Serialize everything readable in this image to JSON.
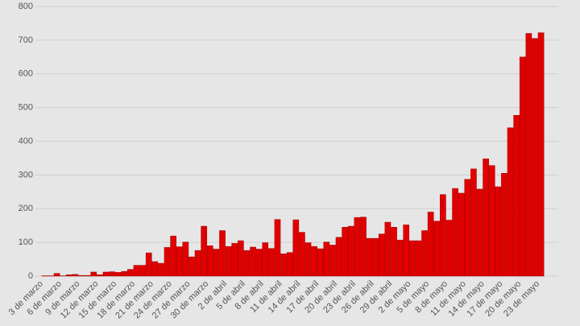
{
  "chart_data": {
    "type": "bar",
    "categories": [
      "3 de marzo",
      null,
      null,
      "6 de marzo",
      null,
      null,
      "9 de marzo",
      null,
      null,
      "12 de marzo",
      null,
      null,
      "15 de marzo",
      null,
      null,
      "18 de marzo",
      null,
      null,
      "21 de marzo",
      null,
      null,
      "24 de marzo",
      null,
      null,
      "27 de marzo",
      null,
      null,
      "30 de marzo",
      null,
      null,
      "2 de abril",
      null,
      null,
      "5 de abril",
      null,
      null,
      "8 de abril",
      null,
      null,
      "11 de abril",
      null,
      null,
      "14 de abril",
      null,
      null,
      "17 de abril",
      null,
      null,
      "20 de abril",
      null,
      null,
      "23 de abril",
      null,
      null,
      "26 de abril",
      null,
      null,
      "29 de abril",
      null,
      null,
      "2 de mayo",
      null,
      null,
      "5 de mayo",
      null,
      null,
      "8 de mayo",
      null,
      null,
      "11 de mayo",
      null,
      null,
      "14 de mayo",
      null,
      null,
      "17 de mayo",
      null,
      null,
      "20 de mayo",
      null,
      null,
      "23 de mayo",
      null,
      null
    ],
    "values": [
      0,
      1,
      1,
      8,
      1,
      4,
      5,
      2,
      2,
      12,
      4,
      12,
      13,
      11,
      14,
      20,
      32,
      32,
      69,
      43,
      38,
      85,
      119,
      87,
      101,
      57,
      76,
      148,
      90,
      80,
      135,
      88,
      97,
      105,
      76,
      86,
      80,
      99,
      82,
      168,
      66,
      70,
      167,
      130,
      99,
      88,
      81,
      101,
      92,
      115,
      145,
      148,
      174,
      175,
      112,
      112,
      125,
      160,
      145,
      107,
      152,
      105,
      105,
      135,
      190,
      163,
      242,
      166,
      260,
      246,
      287,
      318,
      258,
      348,
      328,
      265,
      305,
      440,
      477,
      650,
      720,
      705,
      722,
      0
    ],
    "color": "#e00000",
    "ylim": [
      0,
      800
    ],
    "yticks": [
      0,
      100,
      200,
      300,
      400,
      500,
      600,
      700,
      800
    ],
    "grid": true
  }
}
